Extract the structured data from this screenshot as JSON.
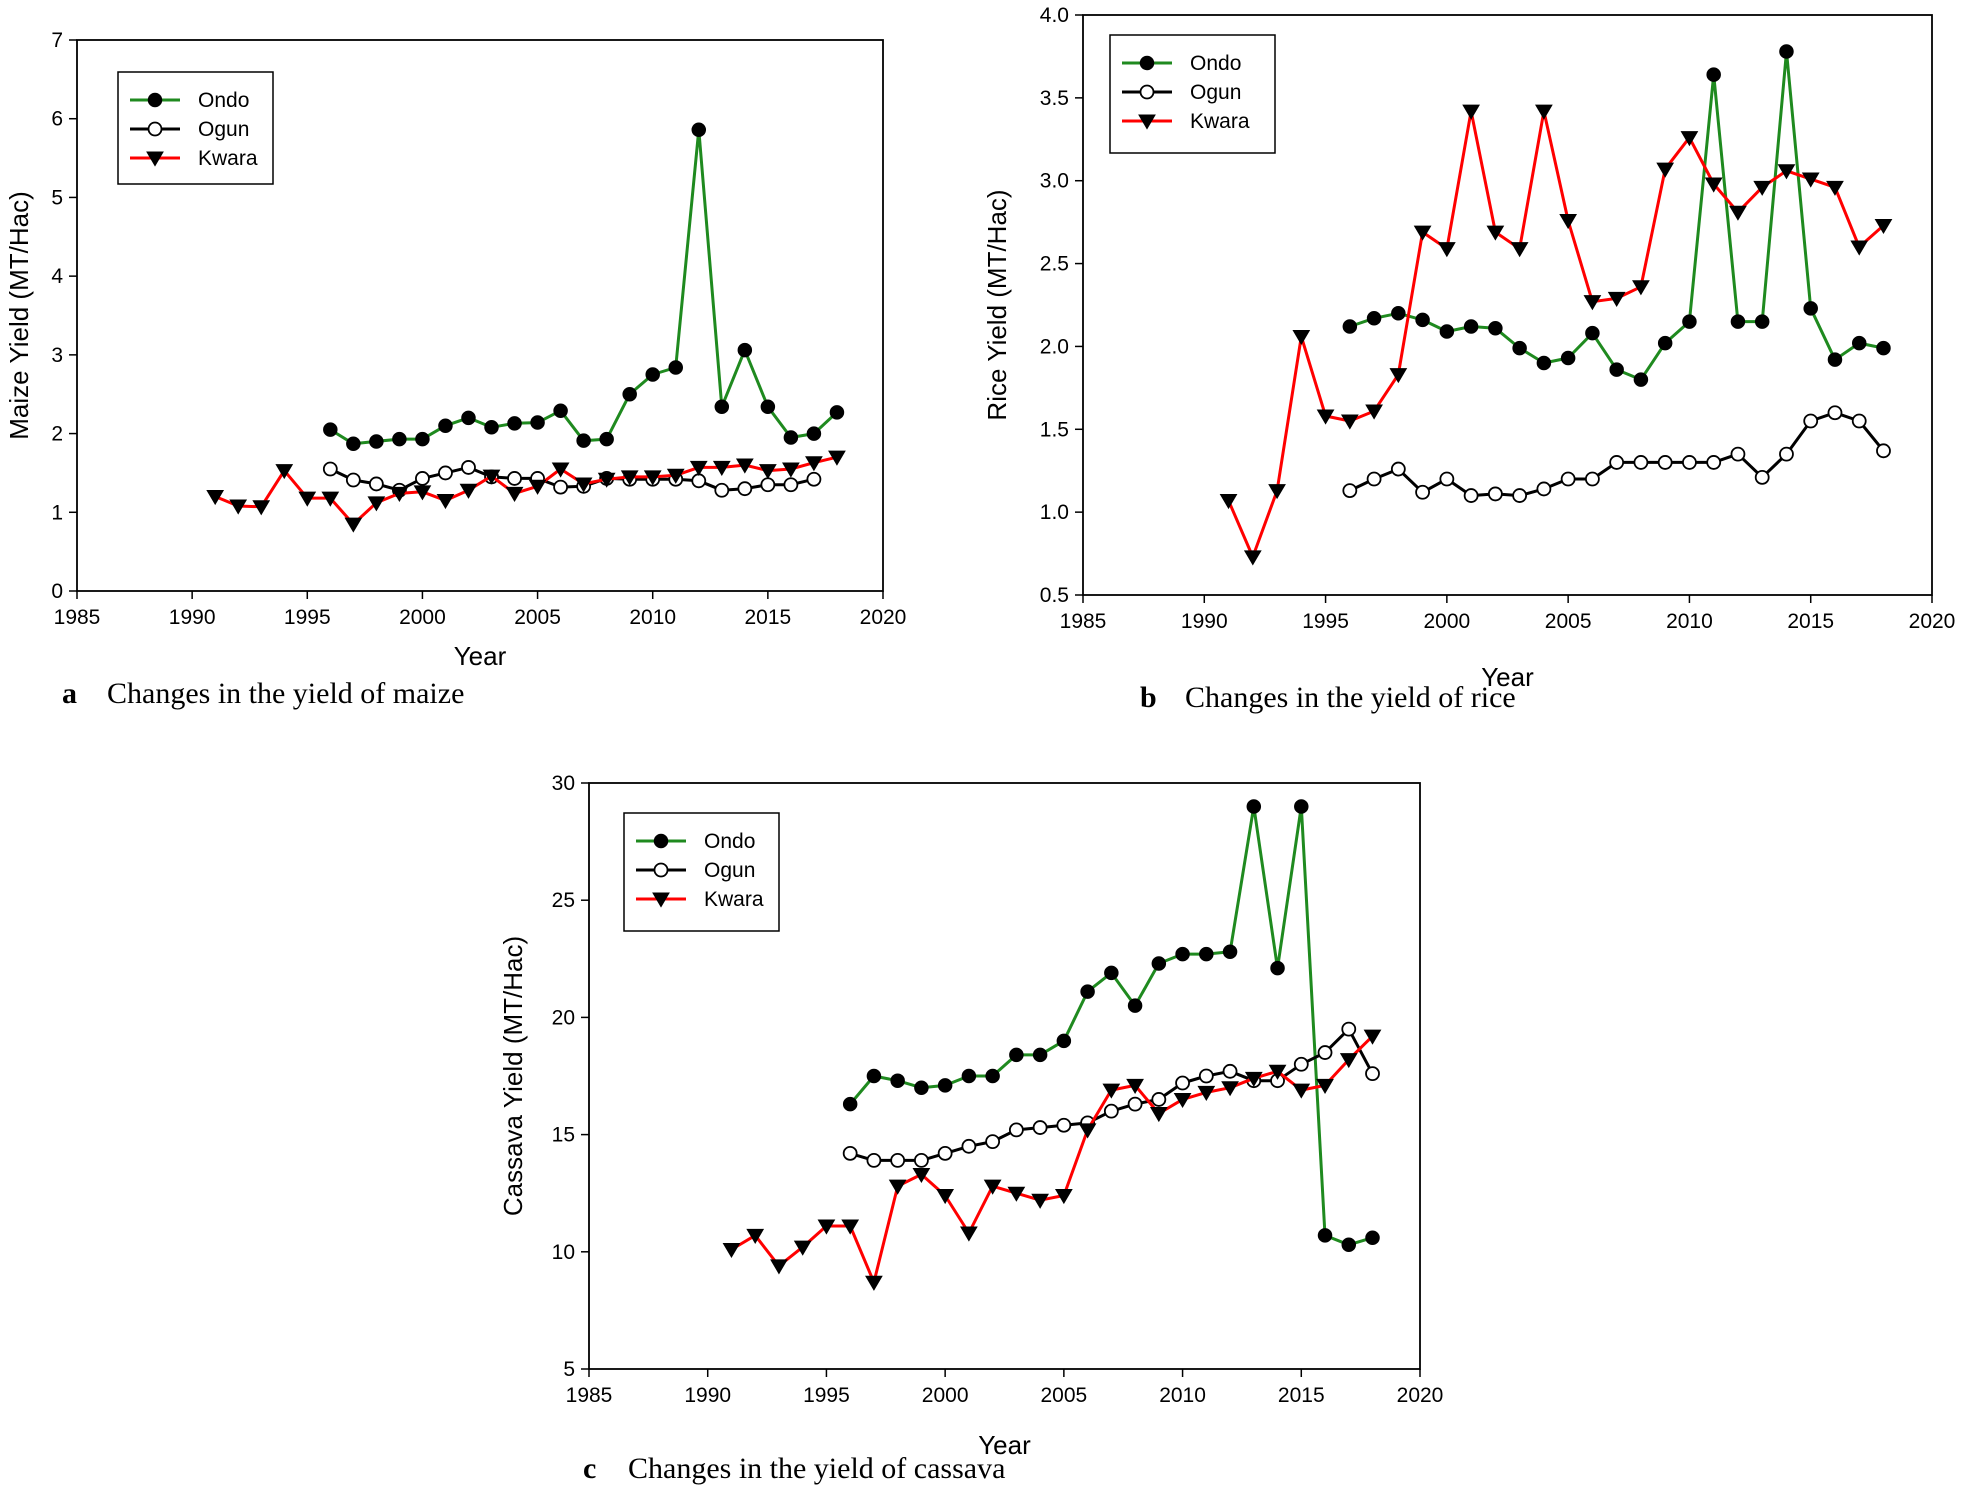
{
  "series_styles": [
    {
      "name": "Ondo",
      "color": "#1f8a1f",
      "marker": "filled-circle"
    },
    {
      "name": "Ogun",
      "color": "#000000",
      "marker": "open-circle"
    },
    {
      "name": "Kwara",
      "color": "#ff0000",
      "marker": "filled-triangle-down"
    }
  ],
  "chart_data": [
    {
      "type": "line",
      "panel": "a",
      "caption_letter": "a",
      "caption": "Changes in the yield of maize",
      "xlabel": "Year",
      "ylabel": "Maize Yield (MT/Hac)",
      "xlim": [
        1985,
        2020
      ],
      "ylim": [
        0,
        7
      ],
      "xticks": [
        "1985",
        "1990",
        "1995",
        "2000",
        "2005",
        "2010",
        "2015",
        "2020"
      ],
      "yticks": [
        "0",
        "1",
        "2",
        "3",
        "4",
        "5",
        "6",
        "7"
      ],
      "legend": {
        "position": "top-left",
        "entries": [
          "Ondo",
          "Ogun",
          "Kwara"
        ]
      },
      "series": [
        {
          "name": "Ondo",
          "x": [
            1996,
            1997,
            1998,
            1999,
            2000,
            2001,
            2002,
            2003,
            2004,
            2005,
            2006,
            2007,
            2008,
            2009,
            2010,
            2011,
            2012,
            2013,
            2014,
            2015,
            2016,
            2017,
            2018
          ],
          "values": [
            2.05,
            1.87,
            1.9,
            1.93,
            1.93,
            2.1,
            2.2,
            2.08,
            2.13,
            2.14,
            2.29,
            1.91,
            1.93,
            2.5,
            2.75,
            2.84,
            5.86,
            2.34,
            3.06,
            2.34,
            1.95,
            2.0,
            2.27
          ]
        },
        {
          "name": "Ogun",
          "x": [
            1996,
            1997,
            1998,
            1999,
            2000,
            2001,
            2002,
            2003,
            2004,
            2005,
            2006,
            2007,
            2008,
            2009,
            2010,
            2011,
            2012,
            2013,
            2014,
            2015,
            2016,
            2017
          ],
          "values": [
            1.55,
            1.41,
            1.36,
            1.28,
            1.43,
            1.5,
            1.57,
            1.45,
            1.43,
            1.43,
            1.32,
            1.33,
            1.43,
            1.42,
            1.42,
            1.42,
            1.4,
            1.28,
            1.3,
            1.35,
            1.35,
            1.42
          ]
        },
        {
          "name": "Kwara",
          "x": [
            1991,
            1992,
            1993,
            1994,
            1995,
            1996,
            1997,
            1998,
            1999,
            2000,
            2001,
            2002,
            2003,
            2004,
            2005,
            2006,
            2007,
            2008,
            2009,
            2010,
            2011,
            2012,
            2013,
            2014,
            2015,
            2016,
            2017,
            2018
          ],
          "values": [
            1.2,
            1.08,
            1.07,
            1.53,
            1.18,
            1.18,
            0.85,
            1.12,
            1.24,
            1.26,
            1.15,
            1.28,
            1.46,
            1.24,
            1.33,
            1.55,
            1.36,
            1.42,
            1.45,
            1.45,
            1.47,
            1.57,
            1.57,
            1.6,
            1.53,
            1.55,
            1.63,
            1.7
          ]
        }
      ]
    },
    {
      "type": "line",
      "panel": "b",
      "caption_letter": "b",
      "caption": "Changes in the yield of rice",
      "xlabel": "Year",
      "ylabel": "Rice Yield (MT/Hac)",
      "xlim": [
        1985,
        2020
      ],
      "ylim": [
        0.5,
        4.0
      ],
      "xticks": [
        "1985",
        "1990",
        "1995",
        "2000",
        "2005",
        "2010",
        "2015",
        "2020"
      ],
      "yticks": [
        "0.5",
        "1.0",
        "1.5",
        "2.0",
        "2.5",
        "3.0",
        "3.5",
        "4.0"
      ],
      "legend": {
        "position": "top-left",
        "entries": [
          "Ondo",
          "Ogun",
          "Kwara"
        ]
      },
      "series": [
        {
          "name": "Ondo",
          "x": [
            1996,
            1997,
            1998,
            1999,
            2000,
            2001,
            2002,
            2003,
            2004,
            2005,
            2006,
            2007,
            2008,
            2009,
            2010,
            2011,
            2012,
            2013,
            2014,
            2015,
            2016,
            2017,
            2018
          ],
          "values": [
            2.12,
            2.17,
            2.2,
            2.16,
            2.09,
            2.12,
            2.11,
            1.99,
            1.9,
            1.93,
            2.08,
            1.86,
            1.8,
            2.02,
            2.15,
            3.64,
            2.15,
            2.15,
            3.78,
            2.23,
            1.92,
            2.02,
            1.99
          ]
        },
        {
          "name": "Ogun",
          "x": [
            1996,
            1997,
            1998,
            1999,
            2000,
            2001,
            2002,
            2003,
            2004,
            2005,
            2006,
            2007,
            2008,
            2009,
            2010,
            2011,
            2012,
            2013,
            2014,
            2015,
            2016,
            2017,
            2018
          ],
          "values": [
            1.13,
            1.2,
            1.26,
            1.12,
            1.2,
            1.1,
            1.11,
            1.1,
            1.14,
            1.2,
            1.2,
            1.3,
            1.3,
            1.3,
            1.3,
            1.3,
            1.35,
            1.21,
            1.35,
            1.55,
            1.6,
            1.55,
            1.37
          ]
        },
        {
          "name": "Kwara",
          "x": [
            1991,
            1992,
            1993,
            1994,
            1995,
            1996,
            1997,
            1998,
            1999,
            2000,
            2001,
            2002,
            2003,
            2004,
            2005,
            2006,
            2007,
            2008,
            2009,
            2010,
            2011,
            2012,
            2013,
            2014,
            2015,
            2016,
            2017,
            2018
          ],
          "values": [
            1.07,
            0.73,
            1.13,
            2.06,
            1.58,
            1.55,
            1.61,
            1.83,
            2.69,
            2.59,
            3.42,
            2.69,
            2.59,
            3.42,
            2.76,
            2.27,
            2.29,
            2.36,
            3.07,
            3.26,
            2.98,
            2.81,
            2.96,
            3.06,
            3.01,
            2.96,
            2.6,
            2.73
          ]
        }
      ]
    },
    {
      "type": "line",
      "panel": "c",
      "caption_letter": "c",
      "caption": "Changes in the yield of cassava",
      "xlabel": "Year",
      "ylabel": "Cassava Yield (MT/Hac)",
      "xlim": [
        1985,
        2020
      ],
      "ylim": [
        5,
        30
      ],
      "xticks": [
        "1985",
        "1990",
        "1995",
        "2000",
        "2005",
        "2010",
        "2015",
        "2020"
      ],
      "yticks": [
        "5",
        "10",
        "15",
        "20",
        "25",
        "30"
      ],
      "legend": {
        "position": "top-left",
        "entries": [
          "Ondo",
          "Ogun",
          "Kwara"
        ]
      },
      "series": [
        {
          "name": "Ondo",
          "x": [
            1996,
            1997,
            1998,
            1999,
            2000,
            2001,
            2002,
            2003,
            2004,
            2005,
            2006,
            2007,
            2008,
            2009,
            2010,
            2011,
            2012,
            2013,
            2014,
            2015,
            2016,
            2017,
            2018
          ],
          "values": [
            16.3,
            17.5,
            17.3,
            17.0,
            17.1,
            17.5,
            17.5,
            18.4,
            18.4,
            19.0,
            21.1,
            21.9,
            20.5,
            22.3,
            22.7,
            22.7,
            22.8,
            29.0,
            22.1,
            29.0,
            10.7,
            10.3,
            10.6
          ]
        },
        {
          "name": "Ogun",
          "x": [
            1996,
            1997,
            1998,
            1999,
            2000,
            2001,
            2002,
            2003,
            2004,
            2005,
            2006,
            2007,
            2008,
            2009,
            2010,
            2011,
            2012,
            2013,
            2014,
            2015,
            2016,
            2017,
            2018
          ],
          "values": [
            14.2,
            13.9,
            13.9,
            13.9,
            14.2,
            14.5,
            14.7,
            15.2,
            15.3,
            15.4,
            15.5,
            16.0,
            16.3,
            16.5,
            17.2,
            17.5,
            17.7,
            17.3,
            17.3,
            18.0,
            18.5,
            19.5,
            17.6
          ]
        },
        {
          "name": "Kwara",
          "x": [
            1991,
            1992,
            1993,
            1994,
            1995,
            1996,
            1997,
            1998,
            1999,
            2000,
            2001,
            2002,
            2003,
            2004,
            2005,
            2006,
            2007,
            2008,
            2009,
            2010,
            2011,
            2012,
            2013,
            2014,
            2015,
            2016,
            2017,
            2018
          ],
          "values": [
            10.1,
            10.7,
            9.4,
            10.2,
            11.1,
            11.1,
            8.7,
            12.8,
            13.3,
            12.4,
            10.8,
            12.8,
            12.5,
            12.2,
            12.4,
            15.2,
            16.9,
            17.1,
            15.9,
            16.5,
            16.8,
            17.0,
            17.4,
            17.7,
            16.9,
            17.1,
            18.2,
            19.2
          ]
        }
      ]
    }
  ]
}
